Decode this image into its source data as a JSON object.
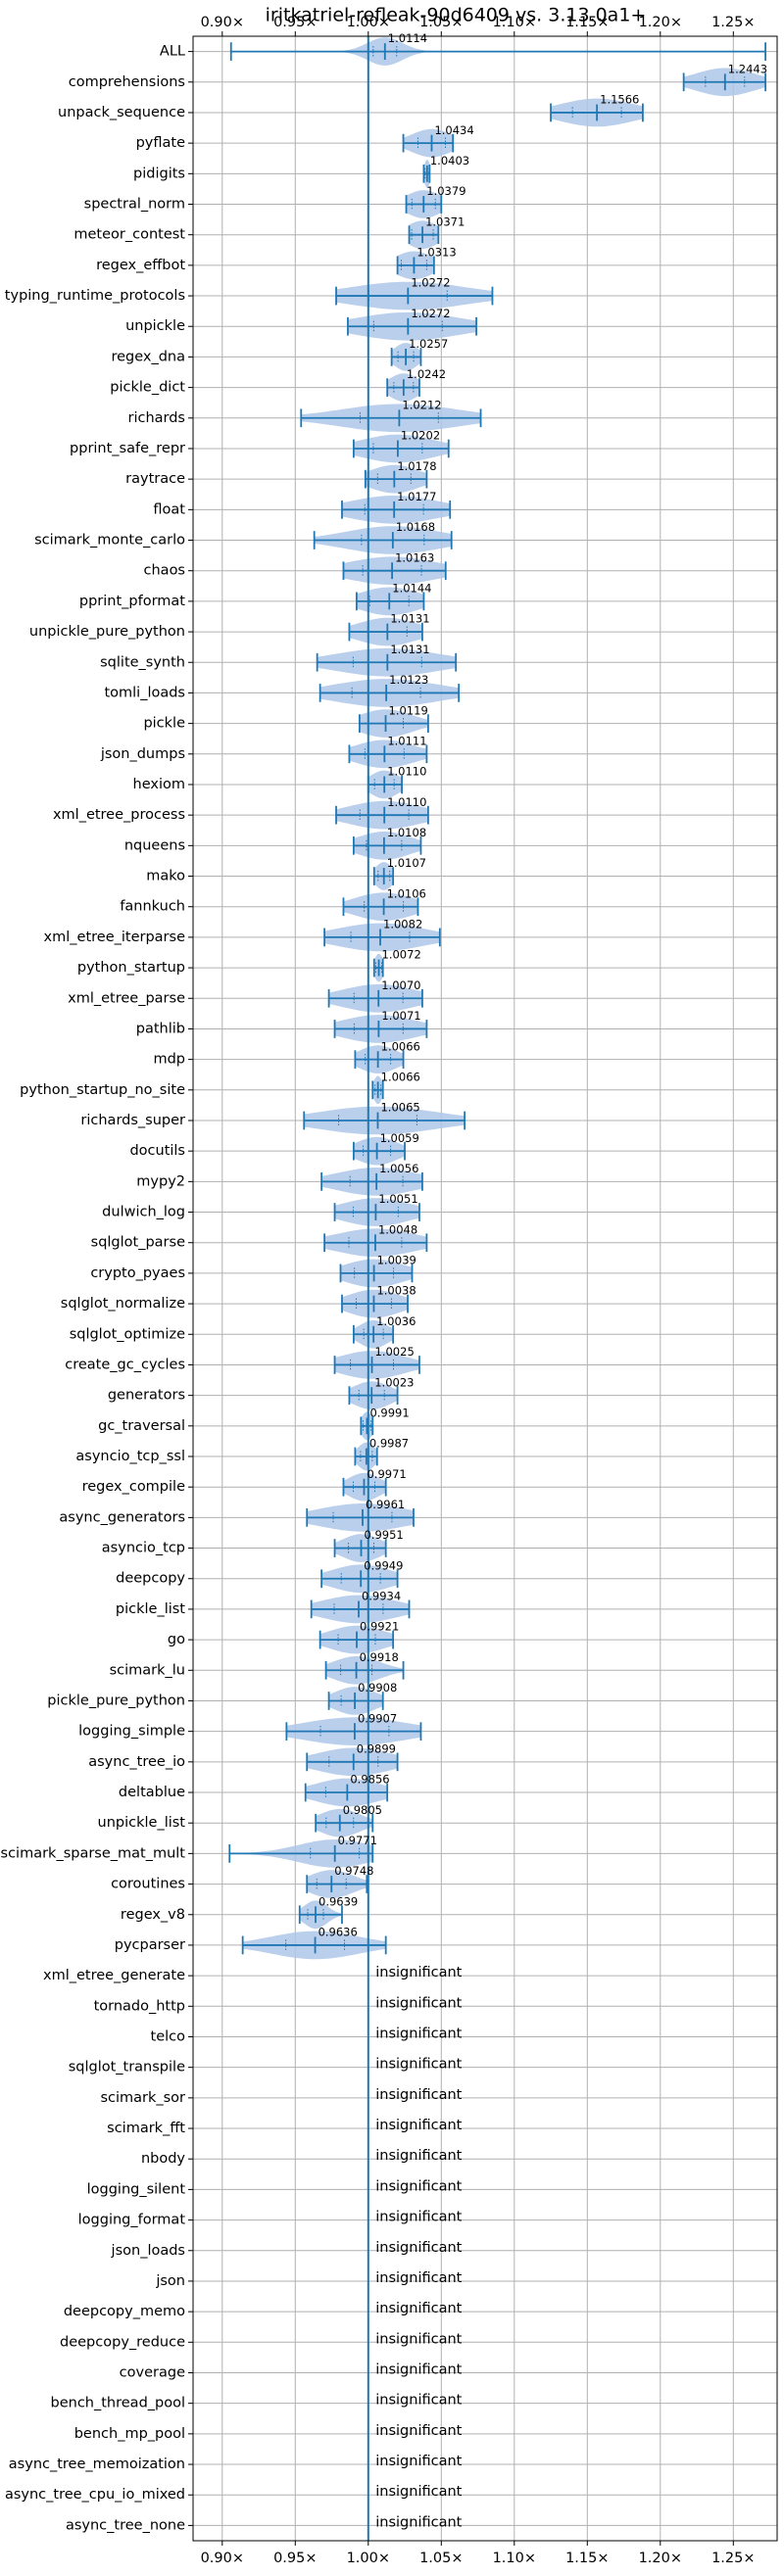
{
  "chart_data": {
    "type": "violin",
    "title": "iritkatriel-refleak-90d6409 vs. 3.13.0a1+",
    "xlim": [
      0.88,
      1.28
    ],
    "x_ticks": [
      0.9,
      0.95,
      1.0,
      1.05,
      1.1,
      1.15,
      1.2,
      1.25
    ],
    "x_tick_labels": [
      "0.90×",
      "0.95×",
      "1.00×",
      "1.05×",
      "1.10×",
      "1.15×",
      "1.20×",
      "1.25×"
    ],
    "reference_line": 1.0,
    "grid": true,
    "insignificant_label": "insignificant",
    "colors": {
      "violin": "#aec7e8",
      "line": "#1f77b4",
      "grid": "#b0b0b0"
    },
    "benchmarks": [
      {
        "name": "ALL",
        "value": 1.0114,
        "label": "1.0114",
        "min": 0.906,
        "max": 1.272,
        "spread": 0.012
      },
      {
        "name": "comprehensions",
        "value": 1.2443,
        "label": "1.2443",
        "min": 1.216,
        "max": 1.272,
        "spread": 0.02
      },
      {
        "name": "unpack_sequence",
        "value": 1.1566,
        "label": "1.1566",
        "min": 1.125,
        "max": 1.188,
        "spread": 0.025
      },
      {
        "name": "pyflate",
        "value": 1.0434,
        "label": "1.0434",
        "min": 1.024,
        "max": 1.058,
        "spread": 0.014
      },
      {
        "name": "pidigits",
        "value": 1.0403,
        "label": "1.0403",
        "min": 1.038,
        "max": 1.042,
        "spread": 0.002
      },
      {
        "name": "spectral_norm",
        "value": 1.0379,
        "label": "1.0379",
        "min": 1.026,
        "max": 1.05,
        "spread": 0.012
      },
      {
        "name": "meteor_contest",
        "value": 1.0371,
        "label": "1.0371",
        "min": 1.028,
        "max": 1.048,
        "spread": 0.011
      },
      {
        "name": "regex_effbot",
        "value": 1.0313,
        "label": "1.0313",
        "min": 1.02,
        "max": 1.045,
        "spread": 0.013
      },
      {
        "name": "typing_runtime_protocols",
        "value": 1.0272,
        "label": "1.0272",
        "min": 0.978,
        "max": 1.085,
        "spread": 0.04
      },
      {
        "name": "unpickle",
        "value": 1.0272,
        "label": "1.0272",
        "min": 0.986,
        "max": 1.074,
        "spread": 0.035
      },
      {
        "name": "regex_dna",
        "value": 1.0257,
        "label": "1.0257",
        "min": 1.016,
        "max": 1.036,
        "spread": 0.008
      },
      {
        "name": "pickle_dict",
        "value": 1.0242,
        "label": "1.0242",
        "min": 1.013,
        "max": 1.035,
        "spread": 0.01
      },
      {
        "name": "richards",
        "value": 1.0212,
        "label": "1.0212",
        "min": 0.954,
        "max": 1.077,
        "spread": 0.04
      },
      {
        "name": "pprint_safe_repr",
        "value": 1.0202,
        "label": "1.0202",
        "min": 0.99,
        "max": 1.055,
        "spread": 0.025
      },
      {
        "name": "raytrace",
        "value": 1.0178,
        "label": "1.0178",
        "min": 0.998,
        "max": 1.04,
        "spread": 0.017
      },
      {
        "name": "float",
        "value": 1.0177,
        "label": "1.0177",
        "min": 0.982,
        "max": 1.056,
        "spread": 0.03
      },
      {
        "name": "scimark_monte_carlo",
        "value": 1.0168,
        "label": "1.0168",
        "min": 0.963,
        "max": 1.057,
        "spread": 0.032
      },
      {
        "name": "chaos",
        "value": 1.0163,
        "label": "1.0163",
        "min": 0.983,
        "max": 1.053,
        "spread": 0.03
      },
      {
        "name": "pprint_pformat",
        "value": 1.0144,
        "label": "1.0144",
        "min": 0.992,
        "max": 1.038,
        "spread": 0.02
      },
      {
        "name": "unpickle_pure_python",
        "value": 1.0131,
        "label": "1.0131",
        "min": 0.987,
        "max": 1.037,
        "spread": 0.02
      },
      {
        "name": "sqlite_synth",
        "value": 1.0131,
        "label": "1.0131",
        "min": 0.965,
        "max": 1.06,
        "spread": 0.035
      },
      {
        "name": "tomli_loads",
        "value": 1.0123,
        "label": "1.0123",
        "min": 0.967,
        "max": 1.062,
        "spread": 0.035
      },
      {
        "name": "pickle",
        "value": 1.0119,
        "label": "1.0119",
        "min": 0.994,
        "max": 1.041,
        "spread": 0.018
      },
      {
        "name": "json_dumps",
        "value": 1.0111,
        "label": "1.0111",
        "min": 0.987,
        "max": 1.04,
        "spread": 0.02
      },
      {
        "name": "hexiom",
        "value": 1.011,
        "label": "1.0110",
        "min": 1.0,
        "max": 1.023,
        "spread": 0.01
      },
      {
        "name": "xml_etree_process",
        "value": 1.011,
        "label": "1.0110",
        "min": 0.978,
        "max": 1.041,
        "spread": 0.025
      },
      {
        "name": "nqueens",
        "value": 1.0108,
        "label": "1.0108",
        "min": 0.99,
        "max": 1.036,
        "spread": 0.018
      },
      {
        "name": "mako",
        "value": 1.0107,
        "label": "1.0107",
        "min": 1.004,
        "max": 1.017,
        "spread": 0.006
      },
      {
        "name": "fannkuch",
        "value": 1.0106,
        "label": "1.0106",
        "min": 0.983,
        "max": 1.034,
        "spread": 0.02
      },
      {
        "name": "xml_etree_iterparse",
        "value": 1.0082,
        "label": "1.0082",
        "min": 0.97,
        "max": 1.049,
        "spread": 0.03
      },
      {
        "name": "python_startup",
        "value": 1.0072,
        "label": "1.0072",
        "min": 1.004,
        "max": 1.01,
        "spread": 0.003
      },
      {
        "name": "xml_etree_parse",
        "value": 1.007,
        "label": "1.0070",
        "min": 0.973,
        "max": 1.037,
        "spread": 0.025
      },
      {
        "name": "pathlib",
        "value": 1.0071,
        "label": "1.0071",
        "min": 0.977,
        "max": 1.04,
        "spread": 0.025
      },
      {
        "name": "mdp",
        "value": 1.0066,
        "label": "1.0066",
        "min": 0.991,
        "max": 1.024,
        "spread": 0.013
      },
      {
        "name": "python_startup_no_site",
        "value": 1.0066,
        "label": "1.0066",
        "min": 1.003,
        "max": 1.01,
        "spread": 0.003
      },
      {
        "name": "richards_super",
        "value": 1.0065,
        "label": "1.0065",
        "min": 0.956,
        "max": 1.066,
        "spread": 0.04
      },
      {
        "name": "docutils",
        "value": 1.0059,
        "label": "1.0059",
        "min": 0.99,
        "max": 1.025,
        "spread": 0.014
      },
      {
        "name": "mypy2",
        "value": 1.0056,
        "label": "1.0056",
        "min": 0.968,
        "max": 1.037,
        "spread": 0.027
      },
      {
        "name": "dulwich_log",
        "value": 1.0051,
        "label": "1.0051",
        "min": 0.977,
        "max": 1.035,
        "spread": 0.023
      },
      {
        "name": "sqlglot_parse",
        "value": 1.0048,
        "label": "1.0048",
        "min": 0.97,
        "max": 1.04,
        "spread": 0.027
      },
      {
        "name": "crypto_pyaes",
        "value": 1.0039,
        "label": "1.0039",
        "min": 0.981,
        "max": 1.03,
        "spread": 0.02
      },
      {
        "name": "sqlglot_normalize",
        "value": 1.0038,
        "label": "1.0038",
        "min": 0.982,
        "max": 1.027,
        "spread": 0.018
      },
      {
        "name": "sqlglot_optimize",
        "value": 1.0036,
        "label": "1.0036",
        "min": 0.99,
        "max": 1.017,
        "spread": 0.01
      },
      {
        "name": "create_gc_cycles",
        "value": 1.0025,
        "label": "1.0025",
        "min": 0.977,
        "max": 1.035,
        "spread": 0.022
      },
      {
        "name": "generators",
        "value": 1.0023,
        "label": "1.0023",
        "min": 0.987,
        "max": 1.02,
        "spread": 0.013
      },
      {
        "name": "gc_traversal",
        "value": 0.9991,
        "label": "0.9991",
        "min": 0.995,
        "max": 1.003,
        "spread": 0.004
      },
      {
        "name": "asyncio_tcp_ssl",
        "value": 0.9987,
        "label": "0.9987",
        "min": 0.991,
        "max": 1.006,
        "spread": 0.006
      },
      {
        "name": "regex_compile",
        "value": 0.9971,
        "label": "0.9971",
        "min": 0.983,
        "max": 1.012,
        "spread": 0.011
      },
      {
        "name": "async_generators",
        "value": 0.9961,
        "label": "0.9961",
        "min": 0.958,
        "max": 1.031,
        "spread": 0.03
      },
      {
        "name": "asyncio_tcp",
        "value": 0.9951,
        "label": "0.9951",
        "min": 0.977,
        "max": 1.012,
        "spread": 0.013
      },
      {
        "name": "deepcopy",
        "value": 0.9949,
        "label": "0.9949",
        "min": 0.968,
        "max": 1.02,
        "spread": 0.02
      },
      {
        "name": "pickle_list",
        "value": 0.9934,
        "label": "0.9934",
        "min": 0.961,
        "max": 1.028,
        "spread": 0.025
      },
      {
        "name": "go",
        "value": 0.9921,
        "label": "0.9921",
        "min": 0.967,
        "max": 1.017,
        "spread": 0.019
      },
      {
        "name": "scimark_lu",
        "value": 0.9918,
        "label": "0.9918",
        "min": 0.971,
        "max": 1.024,
        "spread": 0.016
      },
      {
        "name": "pickle_pure_python",
        "value": 0.9908,
        "label": "0.9908",
        "min": 0.973,
        "max": 1.01,
        "spread": 0.014
      },
      {
        "name": "logging_simple",
        "value": 0.9907,
        "label": "0.9907",
        "min": 0.944,
        "max": 1.036,
        "spread": 0.035
      },
      {
        "name": "async_tree_io",
        "value": 0.9899,
        "label": "0.9899",
        "min": 0.958,
        "max": 1.02,
        "spread": 0.025
      },
      {
        "name": "deltablue",
        "value": 0.9856,
        "label": "0.9856",
        "min": 0.957,
        "max": 1.013,
        "spread": 0.022
      },
      {
        "name": "unpickle_list",
        "value": 0.9805,
        "label": "0.9805",
        "min": 0.964,
        "max": 1.003,
        "spread": 0.014
      },
      {
        "name": "scimark_sparse_mat_mult",
        "value": 0.9771,
        "label": "0.9771",
        "min": 0.905,
        "max": 1.003,
        "spread": 0.025
      },
      {
        "name": "coroutines",
        "value": 0.9748,
        "label": "0.9748",
        "min": 0.958,
        "max": 0.999,
        "spread": 0.015
      },
      {
        "name": "regex_v8",
        "value": 0.9639,
        "label": "0.9639",
        "min": 0.953,
        "max": 0.982,
        "spread": 0.008
      },
      {
        "name": "pycparser",
        "value": 0.9636,
        "label": "0.9636",
        "min": 0.914,
        "max": 1.012,
        "spread": 0.03
      },
      {
        "name": "xml_etree_generate",
        "insignificant": true
      },
      {
        "name": "tornado_http",
        "insignificant": true
      },
      {
        "name": "telco",
        "insignificant": true
      },
      {
        "name": "sqlglot_transpile",
        "insignificant": true
      },
      {
        "name": "scimark_sor",
        "insignificant": true
      },
      {
        "name": "scimark_fft",
        "insignificant": true
      },
      {
        "name": "nbody",
        "insignificant": true
      },
      {
        "name": "logging_silent",
        "insignificant": true
      },
      {
        "name": "logging_format",
        "insignificant": true
      },
      {
        "name": "json_loads",
        "insignificant": true
      },
      {
        "name": "json",
        "insignificant": true
      },
      {
        "name": "deepcopy_memo",
        "insignificant": true
      },
      {
        "name": "deepcopy_reduce",
        "insignificant": true
      },
      {
        "name": "coverage",
        "insignificant": true
      },
      {
        "name": "bench_thread_pool",
        "insignificant": true
      },
      {
        "name": "bench_mp_pool",
        "insignificant": true
      },
      {
        "name": "async_tree_memoization",
        "insignificant": true
      },
      {
        "name": "async_tree_cpu_io_mixed",
        "insignificant": true
      },
      {
        "name": "async_tree_none",
        "insignificant": true
      }
    ]
  }
}
